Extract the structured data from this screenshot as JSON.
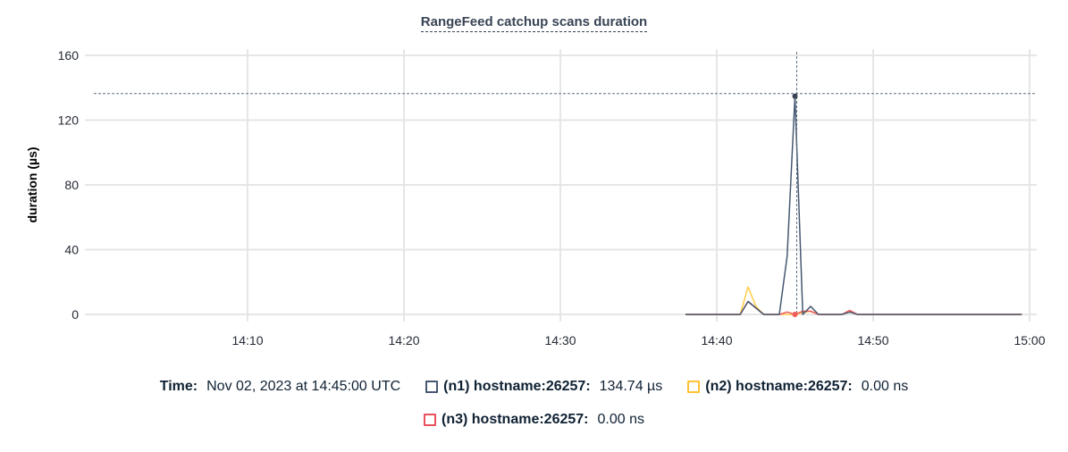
{
  "chart_data": {
    "type": "line",
    "title": "RangeFeed catchup scans duration",
    "ylabel": "duration (µs)",
    "xlabel": "",
    "ylim": [
      0,
      160
    ],
    "yticks": [
      "0",
      "40",
      "80",
      "120",
      "160"
    ],
    "xlim": [
      "14:00",
      "15:00"
    ],
    "xticks": [
      "14:10",
      "14:20",
      "14:30",
      "14:40",
      "14:50",
      "15:00"
    ],
    "grid": true,
    "x": [
      "14:38:00",
      "14:38:30",
      "14:39:00",
      "14:39:30",
      "14:40:00",
      "14:40:30",
      "14:41:00",
      "14:41:30",
      "14:42:00",
      "14:42:30",
      "14:43:00",
      "14:43:30",
      "14:44:00",
      "14:44:30",
      "14:45:00",
      "14:45:30",
      "14:46:00",
      "14:46:30",
      "14:47:00",
      "14:47:30",
      "14:48:00",
      "14:48:30",
      "14:49:00",
      "14:49:30",
      "14:50:00",
      "14:50:30",
      "14:51:00",
      "14:51:30",
      "14:52:00",
      "14:52:30",
      "14:53:00",
      "14:53:30",
      "14:54:00",
      "14:54:30",
      "14:55:00",
      "14:55:30",
      "14:56:00",
      "14:56:30",
      "14:57:00",
      "14:57:30",
      "14:58:00",
      "14:58:30",
      "14:59:00",
      "14:59:30"
    ],
    "series": [
      {
        "name": "(n1) hostname:26257",
        "color": "#475872",
        "values": [
          0,
          0,
          0,
          0,
          0,
          0,
          0,
          0,
          8,
          4,
          0,
          0,
          0,
          36,
          134.74,
          0,
          5,
          0,
          0,
          0,
          0,
          1.5,
          0,
          0,
          0,
          0,
          0,
          0,
          0,
          0,
          0,
          0,
          0,
          0,
          0,
          0,
          0,
          0,
          0,
          0,
          0,
          0,
          0,
          0
        ]
      },
      {
        "name": "(n2) hostname:26257",
        "color": "#ffcd4a",
        "values": [
          0,
          0,
          0,
          0,
          0,
          0,
          0,
          0,
          17,
          5,
          0,
          0,
          0,
          0,
          0,
          1,
          2,
          0,
          0,
          0,
          0,
          1.5,
          0,
          0,
          0,
          0,
          0,
          0,
          0,
          0,
          0,
          0,
          0,
          0,
          0,
          0,
          0,
          0,
          0,
          0,
          0,
          0,
          0,
          0
        ]
      },
      {
        "name": "(n3) hostname:26257",
        "color": "#f15c5c",
        "values": [
          0,
          0,
          0,
          0,
          0,
          0,
          0,
          0,
          8,
          4,
          0,
          0,
          0,
          1.5,
          0,
          2,
          2,
          0,
          0,
          0,
          0,
          2.5,
          0,
          0,
          0,
          0,
          0,
          0,
          0,
          0,
          0,
          0,
          0,
          0,
          0,
          0,
          0,
          0,
          0,
          0,
          0,
          0,
          0,
          0
        ]
      }
    ],
    "hover": {
      "time_index": 14
    }
  },
  "legend": {
    "time_label": "Time:",
    "time_value": "Nov 02, 2023 at 14:45:00 UTC",
    "items": [
      {
        "label": "(n1) hostname:26257:",
        "value": "134.74 µs"
      },
      {
        "label": "(n2) hostname:26257:",
        "value": "0.00 ns"
      },
      {
        "label": "(n3) hostname:26257:",
        "value": "0.00 ns"
      }
    ]
  }
}
